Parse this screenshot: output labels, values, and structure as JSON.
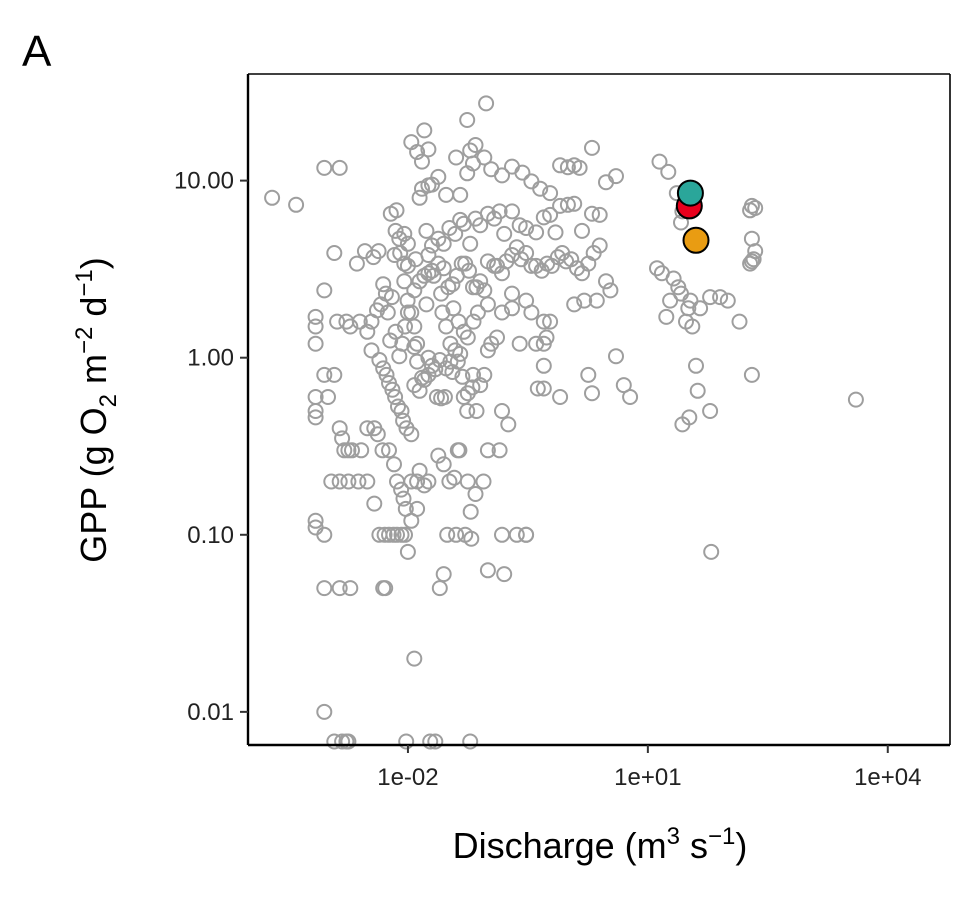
{
  "chart_data": {
    "type": "scatter",
    "panel_label": "A",
    "xlabel": {
      "text": "Discharge (m",
      "sup1": "3",
      "mid": " s",
      "sup2": "−1",
      "end": ")"
    },
    "ylabel": {
      "text": "GPP (g O",
      "sub1": "2",
      "mid": " m",
      "sup1": "−2",
      "mid2": " d",
      "sup2": "−1",
      "end": ")"
    },
    "x_scale": "log10",
    "y_scale": "log10",
    "xlim": [
      0.0001,
      60000
    ],
    "ylim": [
      0.0065,
      40
    ],
    "x_ticks": [
      {
        "value": 0.01,
        "label": "1e-02"
      },
      {
        "value": 10,
        "label": "1e+01"
      },
      {
        "value": 10000,
        "label": "1e+04"
      }
    ],
    "y_ticks": [
      {
        "value": 0.01,
        "label": "0.01"
      },
      {
        "value": 0.1,
        "label": "0.10"
      },
      {
        "value": 1,
        "label": "1.00"
      },
      {
        "value": 10,
        "label": "10.00"
      }
    ],
    "grid": false,
    "background_series": {
      "color": "#9e9e9e",
      "marker": "open-circle",
      "points": [
        [
          0.0002,
          8
        ],
        [
          0.0004,
          7.3
        ],
        [
          0.0009,
          11.8
        ],
        [
          0.0014,
          11.8
        ],
        [
          0.0012,
          3.9
        ],
        [
          0.0009,
          2.4
        ],
        [
          0.0007,
          1.7
        ],
        [
          0.0007,
          1.5
        ],
        [
          0.0007,
          1.2
        ],
        [
          0.0013,
          1.6
        ],
        [
          0.0017,
          1.6
        ],
        [
          0.0019,
          1.5
        ],
        [
          0.0025,
          1.6
        ],
        [
          0.0023,
          3.4
        ],
        [
          0.0029,
          4
        ],
        [
          0.0037,
          3.7
        ],
        [
          0.0043,
          4
        ],
        [
          0.0049,
          2.6
        ],
        [
          0.0056,
          1.8
        ],
        [
          0.0061,
          6.5
        ],
        [
          0.007,
          5.2
        ],
        [
          0.0078,
          4.7
        ],
        [
          0.008,
          3.9
        ],
        [
          0.009,
          3.4
        ],
        [
          0.009,
          2.7
        ],
        [
          0.0099,
          2.1
        ],
        [
          0.012,
          2.4
        ],
        [
          0.011,
          1.8
        ],
        [
          0.012,
          1.5
        ],
        [
          0.013,
          1.2
        ],
        [
          0.0035,
          1.1
        ],
        [
          0.0044,
          0.97
        ],
        [
          0.0049,
          0.87
        ],
        [
          0.0054,
          0.8
        ],
        [
          0.0058,
          0.72
        ],
        [
          0.0064,
          0.66
        ],
        [
          0.0069,
          0.6
        ],
        [
          0.0075,
          0.53
        ],
        [
          0.0083,
          0.5
        ],
        [
          0.0087,
          0.44
        ],
        [
          0.0096,
          0.4
        ],
        [
          0.011,
          0.37
        ],
        [
          0.0012,
          0.8
        ],
        [
          0.0009,
          0.8
        ],
        [
          0.001,
          0.6
        ],
        [
          0.0007,
          0.6
        ],
        [
          0.0007,
          0.5
        ],
        [
          0.0007,
          0.46
        ],
        [
          0.0014,
          0.4
        ],
        [
          0.0015,
          0.35
        ],
        [
          0.0016,
          0.3
        ],
        [
          0.0018,
          0.3
        ],
        [
          0.002,
          0.3
        ],
        [
          0.0026,
          0.3
        ],
        [
          0.0031,
          0.4
        ],
        [
          0.0038,
          0.4
        ],
        [
          0.0042,
          0.37
        ],
        [
          0.0048,
          0.3
        ],
        [
          0.0058,
          0.3
        ],
        [
          0.0067,
          0.25
        ],
        [
          0.0073,
          0.2
        ],
        [
          0.0082,
          0.18
        ],
        [
          0.0088,
          0.16
        ],
        [
          0.0094,
          0.14
        ],
        [
          0.011,
          0.2
        ],
        [
          0.013,
          0.2
        ],
        [
          0.014,
          0.23
        ],
        [
          0.016,
          0.19
        ],
        [
          0.018,
          0.2
        ],
        [
          0.0011,
          0.2
        ],
        [
          0.0014,
          0.2
        ],
        [
          0.0018,
          0.2
        ],
        [
          0.0024,
          0.2
        ],
        [
          0.0031,
          0.2
        ],
        [
          0.0038,
          0.15
        ],
        [
          0.0044,
          0.1
        ],
        [
          0.0051,
          0.1
        ],
        [
          0.0058,
          0.1
        ],
        [
          0.0066,
          0.1
        ],
        [
          0.0073,
          0.1
        ],
        [
          0.0083,
          0.1
        ],
        [
          0.0092,
          0.1
        ],
        [
          0.01,
          0.08
        ],
        [
          0.011,
          0.12
        ],
        [
          0.013,
          0.14
        ],
        [
          0.0007,
          0.12
        ],
        [
          0.0007,
          0.11
        ],
        [
          0.0009,
          0.1
        ],
        [
          0.0009,
          0.05
        ],
        [
          0.0014,
          0.05
        ],
        [
          0.0019,
          0.05
        ],
        [
          0.0049,
          0.05
        ],
        [
          0.0052,
          0.05
        ],
        [
          0.0009,
          0.01
        ],
        [
          0.0012,
          0.0068
        ],
        [
          0.0015,
          0.0068
        ],
        [
          0.0017,
          0.0068
        ],
        [
          0.0018,
          0.0068
        ],
        [
          0.0095,
          0.0068
        ],
        [
          0.012,
          0.02
        ],
        [
          0.019,
          0.0068
        ],
        [
          0.022,
          0.0068
        ],
        [
          0.06,
          0.0068
        ],
        [
          0.025,
          0.05
        ],
        [
          0.028,
          0.06
        ],
        [
          0.031,
          0.1
        ],
        [
          0.04,
          0.1
        ],
        [
          0.052,
          0.1
        ],
        [
          0.062,
          0.095
        ],
        [
          0.024,
          0.28
        ],
        [
          0.028,
          0.25
        ],
        [
          0.033,
          0.2
        ],
        [
          0.038,
          0.21
        ],
        [
          0.044,
          0.3
        ],
        [
          0.042,
          0.3
        ],
        [
          0.056,
          0.2
        ],
        [
          0.061,
          0.135
        ],
        [
          0.07,
          0.17
        ],
        [
          0.088,
          0.2
        ],
        [
          0.1,
          0.3
        ],
        [
          0.14,
          0.3
        ],
        [
          0.16,
          0.06
        ],
        [
          0.23,
          0.1
        ],
        [
          0.3,
          0.1
        ],
        [
          0.012,
          0.7
        ],
        [
          0.014,
          0.65
        ],
        [
          0.016,
          0.75
        ],
        [
          0.018,
          0.8
        ],
        [
          0.02,
          0.9
        ],
        [
          0.023,
          0.6
        ],
        [
          0.026,
          0.59
        ],
        [
          0.029,
          0.6
        ],
        [
          0.034,
          0.95
        ],
        [
          0.039,
          1.1
        ],
        [
          0.045,
          1.05
        ],
        [
          0.05,
          0.6
        ],
        [
          0.055,
          0.5
        ],
        [
          0.065,
          0.8
        ],
        [
          0.072,
          0.5
        ],
        [
          0.08,
          0.7
        ],
        [
          0.09,
          0.8
        ],
        [
          0.1,
          1.1
        ],
        [
          0.11,
          1.2
        ],
        [
          0.13,
          1.3
        ],
        [
          0.15,
          0.5
        ],
        [
          0.18,
          0.42
        ],
        [
          0.2,
          1.9
        ],
        [
          0.25,
          1.2
        ],
        [
          0.3,
          2.1
        ],
        [
          0.35,
          1.8
        ],
        [
          0.42,
          0.67
        ],
        [
          0.54,
          1.3
        ],
        [
          0.5,
          1.2
        ],
        [
          0.014,
          2.7
        ],
        [
          0.016,
          2.9
        ],
        [
          0.018,
          3
        ],
        [
          0.021,
          2.9
        ],
        [
          0.024,
          3.4
        ],
        [
          0.028,
          3.2
        ],
        [
          0.032,
          2.5
        ],
        [
          0.036,
          2.6
        ],
        [
          0.041,
          2.9
        ],
        [
          0.047,
          3.4
        ],
        [
          0.052,
          3.4
        ],
        [
          0.058,
          3.1
        ],
        [
          0.065,
          2.5
        ],
        [
          0.072,
          2.5
        ],
        [
          0.08,
          2.7
        ],
        [
          0.09,
          2.4
        ],
        [
          0.1,
          3.5
        ],
        [
          0.12,
          3.3
        ],
        [
          0.13,
          3.3
        ],
        [
          0.15,
          3
        ],
        [
          0.17,
          3.5
        ],
        [
          0.2,
          3.8
        ],
        [
          0.23,
          4.2
        ],
        [
          0.26,
          3.6
        ],
        [
          0.3,
          3.9
        ],
        [
          0.35,
          3.3
        ],
        [
          0.4,
          3.3
        ],
        [
          0.47,
          3.1
        ],
        [
          0.55,
          3.4
        ],
        [
          0.63,
          3.3
        ],
        [
          0.75,
          3.7
        ],
        [
          0.85,
          3.9
        ],
        [
          0.95,
          3.5
        ],
        [
          1.1,
          3.6
        ],
        [
          1.3,
          3.2
        ],
        [
          1.5,
          3
        ],
        [
          1.8,
          3.4
        ],
        [
          2.1,
          3.9
        ],
        [
          2.5,
          4.3
        ],
        [
          3,
          2.7
        ],
        [
          3.4,
          2.4
        ],
        [
          0.017,
          5.2
        ],
        [
          0.02,
          4.3
        ],
        [
          0.024,
          4.7
        ],
        [
          0.028,
          4.4
        ],
        [
          0.033,
          5.4
        ],
        [
          0.039,
          5
        ],
        [
          0.045,
          6
        ],
        [
          0.05,
          5.7
        ],
        [
          0.06,
          4.4
        ],
        [
          0.07,
          6.1
        ],
        [
          0.08,
          5.6
        ],
        [
          0.1,
          6.5
        ],
        [
          0.12,
          6.1
        ],
        [
          0.14,
          6.7
        ],
        [
          0.16,
          5
        ],
        [
          0.2,
          6.7
        ],
        [
          0.25,
          5.6
        ],
        [
          0.3,
          5.4
        ],
        [
          0.4,
          5.1
        ],
        [
          0.5,
          6.2
        ],
        [
          0.6,
          6.4
        ],
        [
          0.7,
          5.1
        ],
        [
          0.8,
          7.2
        ],
        [
          1,
          7.3
        ],
        [
          1.2,
          7.4
        ],
        [
          1.5,
          5.2
        ],
        [
          2,
          6.5
        ],
        [
          2.5,
          6.4
        ],
        [
          0.014,
          8
        ],
        [
          0.015,
          9
        ],
        [
          0.018,
          9.4
        ],
        [
          0.02,
          9.5
        ],
        [
          0.024,
          10.5
        ],
        [
          0.03,
          8.3
        ],
        [
          0.045,
          8.3
        ],
        [
          0.055,
          11
        ],
        [
          0.065,
          12.5
        ],
        [
          0.09,
          13.5
        ],
        [
          0.11,
          11.6
        ],
        [
          0.15,
          10.7
        ],
        [
          0.2,
          12
        ],
        [
          0.27,
          11.1
        ],
        [
          0.35,
          9.9
        ],
        [
          0.45,
          9
        ],
        [
          0.6,
          8.5
        ],
        [
          0.8,
          12.2
        ],
        [
          1,
          11.9
        ],
        [
          1.2,
          12.2
        ],
        [
          1.4,
          11.8
        ],
        [
          2,
          15.3
        ],
        [
          3,
          9.8
        ],
        [
          4,
          10.6
        ],
        [
          0.013,
          14.5
        ],
        [
          0.015,
          12.8
        ],
        [
          0.016,
          19.2
        ],
        [
          0.011,
          16.5
        ],
        [
          0.018,
          15
        ],
        [
          0.04,
          13.5
        ],
        [
          0.06,
          14.8
        ],
        [
          0.07,
          15.9
        ],
        [
          0.095,
          27.3
        ],
        [
          0.055,
          22
        ],
        [
          0.009,
          5
        ],
        [
          0.01,
          4.4
        ],
        [
          0.018,
          3.8
        ],
        [
          0.02,
          3.1
        ],
        [
          0.0072,
          6.8
        ],
        [
          0.01,
          3.3
        ],
        [
          0.0125,
          3.6
        ],
        [
          0.0068,
          3.8
        ],
        [
          0.017,
          2
        ],
        [
          0.026,
          2.3
        ],
        [
          0.027,
          1.8
        ],
        [
          0.03,
          1.5
        ],
        [
          0.034,
          1.2
        ],
        [
          0.037,
          1.9
        ],
        [
          0.043,
          1.6
        ],
        [
          0.05,
          1.4
        ],
        [
          0.056,
          1.3
        ],
        [
          0.066,
          1.6
        ],
        [
          0.075,
          1.8
        ],
        [
          0.1,
          2
        ],
        [
          0.15,
          1.8
        ],
        [
          0.2,
          2.3
        ],
        [
          0.5,
          1.6
        ],
        [
          0.6,
          1.6
        ],
        [
          1.2,
          2
        ],
        [
          1.6,
          2.1
        ],
        [
          2.3,
          2.1
        ],
        [
          0.013,
          0.95
        ],
        [
          0.015,
          0.77
        ],
        [
          0.018,
          1
        ],
        [
          0.022,
          0.86
        ],
        [
          0.025,
          0.97
        ],
        [
          0.03,
          0.87
        ],
        [
          0.036,
          0.83
        ],
        [
          0.042,
          0.95
        ],
        [
          0.048,
          0.78
        ],
        [
          0.056,
          0.63
        ],
        [
          0.064,
          0.68
        ],
        [
          0.006,
          1.25
        ],
        [
          0.007,
          1.4
        ],
        [
          0.0078,
          1.02
        ],
        [
          0.0085,
          1.2
        ],
        [
          0.0092,
          1.5
        ],
        [
          0.01,
          1.8
        ],
        [
          0.012,
          1.15
        ],
        [
          0.0063,
          2.2
        ],
        [
          0.0053,
          2.3
        ],
        [
          0.0046,
          2
        ],
        [
          0.0041,
          1.85
        ],
        [
          0.0035,
          1.6
        ],
        [
          0.0031,
          1.4
        ],
        [
          0.5,
          0.67
        ],
        [
          0.4,
          1.2
        ],
        [
          1.8,
          0.8
        ],
        [
          2,
          0.63
        ],
        [
          4,
          1.02
        ],
        [
          5,
          0.7
        ],
        [
          6,
          0.6
        ],
        [
          13,
          3.2
        ],
        [
          15,
          3
        ],
        [
          17,
          1.7
        ],
        [
          19,
          2.1
        ],
        [
          21,
          2.8
        ],
        [
          24,
          2.5
        ],
        [
          26,
          2.3
        ],
        [
          30,
          1.6
        ],
        [
          36,
          1.5
        ],
        [
          45,
          1.9
        ],
        [
          60,
          2.2
        ],
        [
          80,
          2.2
        ],
        [
          100,
          2.1
        ],
        [
          140,
          1.6
        ],
        [
          200,
          3.5
        ],
        [
          220,
          4
        ],
        [
          200,
          4.7
        ],
        [
          210,
          3.6
        ],
        [
          190,
          3.4
        ],
        [
          14,
          12.8
        ],
        [
          18,
          11.2
        ],
        [
          23,
          8.5
        ],
        [
          27,
          6.7
        ],
        [
          30,
          7.1
        ],
        [
          26,
          5.8
        ],
        [
          200,
          7.2
        ],
        [
          190,
          6.8
        ],
        [
          220,
          7
        ],
        [
          27,
          0.42
        ],
        [
          33,
          0.46
        ],
        [
          34,
          2.1
        ],
        [
          32,
          1.9
        ],
        [
          40,
          0.9
        ],
        [
          42,
          0.65
        ],
        [
          60,
          0.5
        ],
        [
          62,
          0.08
        ],
        [
          200,
          0.8
        ],
        [
          4000,
          0.58
        ],
        [
          0.1,
          0.063
        ],
        [
          0.15,
          0.1
        ],
        [
          0.3,
          0.1
        ],
        [
          0.8,
          0.6
        ],
        [
          0.5,
          0.9
        ]
      ]
    },
    "highlight_points": [
      {
        "x": 33,
        "y": 7.2,
        "color": "#e8001c"
      },
      {
        "x": 34,
        "y": 8.5,
        "color": "#2aa69a"
      },
      {
        "x": 40,
        "y": 4.6,
        "color": "#e99c12"
      }
    ]
  }
}
